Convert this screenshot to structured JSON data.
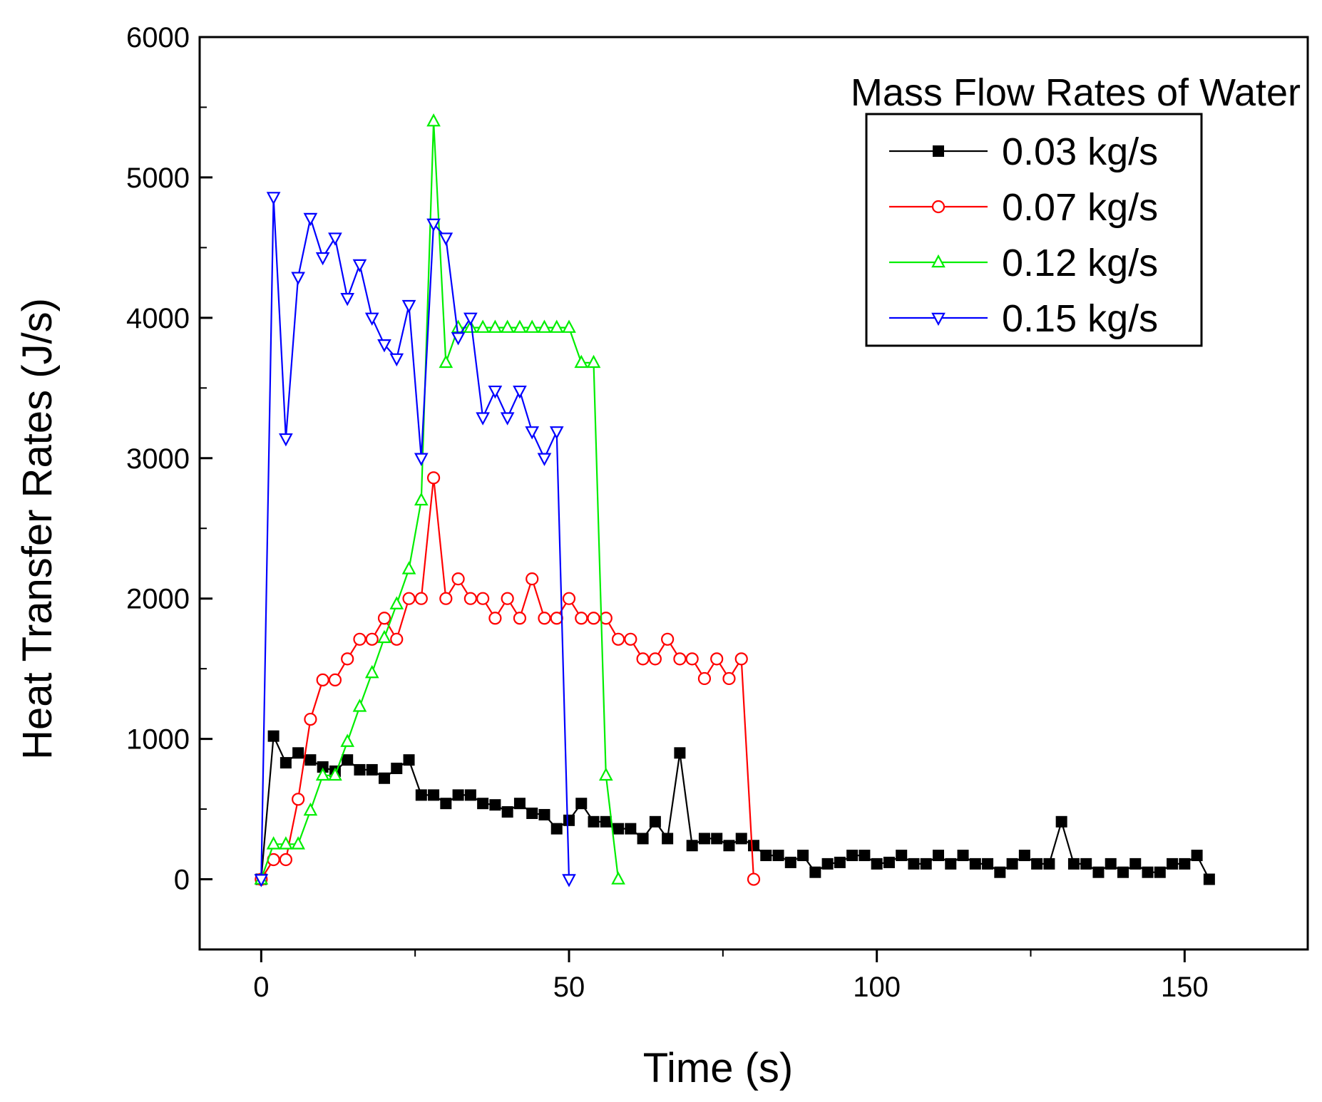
{
  "chart_data": {
    "type": "line",
    "title": "",
    "xlabel": "Time (s)",
    "ylabel": "Heat Transfer Rates (J/s)",
    "xlim": [
      -10,
      170
    ],
    "ylim": [
      -500,
      6000
    ],
    "xticks": [
      0,
      50,
      100,
      150
    ],
    "yticks": [
      0,
      1000,
      2000,
      3000,
      4000,
      5000,
      6000
    ],
    "legend_title": "Mass Flow Rates of Water",
    "legend_position": "top-right",
    "series": [
      {
        "name": "0.03 kg/s",
        "color": "#000000",
        "marker": "filled-square",
        "x": [
          0,
          2,
          4,
          6,
          8,
          10,
          12,
          14,
          16,
          18,
          20,
          22,
          24,
          26,
          28,
          30,
          32,
          34,
          36,
          38,
          40,
          42,
          44,
          46,
          48,
          50,
          52,
          54,
          56,
          58,
          60,
          62,
          64,
          66,
          68,
          70,
          72,
          74,
          76,
          78,
          80,
          82,
          84,
          86,
          88,
          90,
          92,
          94,
          96,
          98,
          100,
          102,
          104,
          106,
          108,
          110,
          112,
          114,
          116,
          118,
          120,
          122,
          124,
          126,
          128,
          130,
          132,
          134,
          136,
          138,
          140,
          142,
          144,
          146,
          148,
          150,
          152,
          154
        ],
        "values": [
          0,
          1020,
          830,
          900,
          850,
          800,
          770,
          850,
          780,
          780,
          720,
          790,
          850,
          600,
          600,
          540,
          600,
          600,
          540,
          530,
          480,
          540,
          470,
          460,
          360,
          420,
          540,
          410,
          410,
          360,
          360,
          290,
          410,
          290,
          900,
          240,
          290,
          290,
          240,
          290,
          240,
          170,
          170,
          120,
          170,
          50,
          110,
          120,
          170,
          170,
          110,
          120,
          170,
          110,
          110,
          170,
          110,
          170,
          110,
          110,
          50,
          110,
          170,
          110,
          110,
          410,
          110,
          110,
          50,
          110,
          50,
          110,
          50,
          50,
          110,
          110,
          170,
          0
        ]
      },
      {
        "name": "0.07 kg/s",
        "color": "#ff0000",
        "marker": "open-circle",
        "x": [
          0,
          2,
          4,
          6,
          8,
          10,
          12,
          14,
          16,
          18,
          20,
          22,
          24,
          26,
          28,
          30,
          32,
          34,
          36,
          38,
          40,
          42,
          44,
          46,
          48,
          50,
          52,
          54,
          56,
          58,
          60,
          62,
          64,
          66,
          68,
          70,
          72,
          74,
          76,
          78,
          80
        ],
        "values": [
          0,
          140,
          140,
          570,
          1140,
          1420,
          1420,
          1570,
          1710,
          1710,
          1860,
          1710,
          2000,
          2000,
          2860,
          2000,
          2140,
          2000,
          2000,
          1860,
          2000,
          1860,
          2140,
          1860,
          1860,
          2000,
          1860,
          1860,
          1860,
          1710,
          1710,
          1570,
          1570,
          1710,
          1570,
          1570,
          1430,
          1570,
          1430,
          1570,
          0
        ]
      },
      {
        "name": "0.12 kg/s",
        "color": "#00ee00",
        "marker": "open-triangle-up",
        "x": [
          0,
          2,
          4,
          6,
          8,
          10,
          12,
          14,
          16,
          18,
          20,
          22,
          24,
          26,
          28,
          30,
          32,
          34,
          36,
          38,
          40,
          42,
          44,
          46,
          48,
          50,
          52,
          54,
          56,
          58
        ],
        "values": [
          0,
          250,
          250,
          250,
          490,
          740,
          740,
          980,
          1230,
          1470,
          1720,
          1960,
          2210,
          2700,
          5400,
          3680,
          3930,
          3930,
          3930,
          3930,
          3930,
          3930,
          3930,
          3930,
          3930,
          3930,
          3680,
          3680,
          740,
          0
        ]
      },
      {
        "name": "0.15 kg/s",
        "color": "#0000ff",
        "marker": "open-triangle-down",
        "x": [
          0,
          2,
          4,
          6,
          8,
          10,
          12,
          14,
          16,
          18,
          20,
          22,
          24,
          26,
          28,
          30,
          32,
          34,
          36,
          38,
          40,
          42,
          44,
          46,
          48,
          50
        ],
        "values": [
          0,
          4860,
          3140,
          4290,
          4710,
          4430,
          4570,
          4140,
          4380,
          4000,
          3810,
          3710,
          4090,
          3000,
          4670,
          4570,
          3860,
          4000,
          3290,
          3480,
          3290,
          3480,
          3190,
          3000,
          3190,
          0
        ]
      }
    ]
  }
}
